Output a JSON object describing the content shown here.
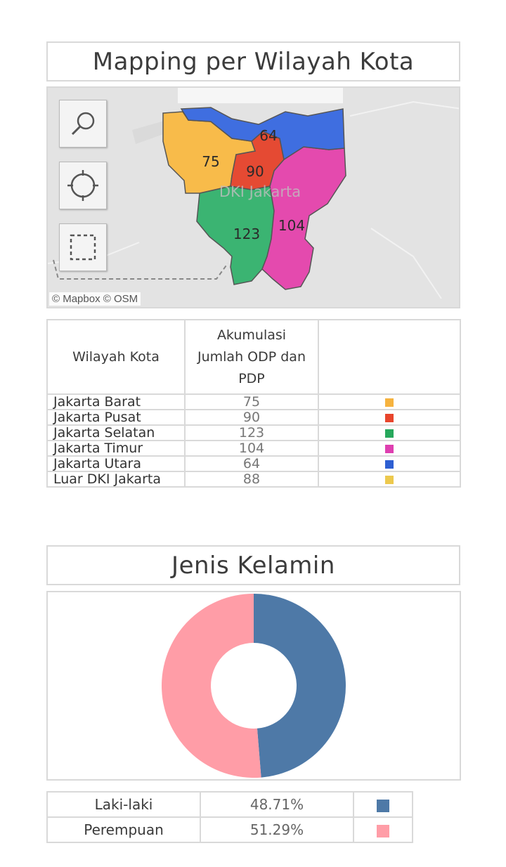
{
  "map_section": {
    "title": "Mapping per Wilayah Kota",
    "map_label": "DKI Jakarta",
    "attribution": "© Mapbox  © OSM",
    "tools": [
      {
        "name": "search-tool",
        "icon": "magnifier-icon"
      },
      {
        "name": "locate-tool",
        "icon": "crosshair-icon"
      },
      {
        "name": "select-tool",
        "icon": "dashed-rectangle-icon"
      }
    ],
    "region_labels": {
      "utara": "64",
      "barat": "75",
      "pusat": "90",
      "selatan": "123",
      "timur": "104"
    }
  },
  "region_table": {
    "headers": {
      "region": "Wilayah Kota",
      "value_line1": "Akumulasi",
      "value_line2": "Jumlah ODP dan",
      "value_line3": "PDP",
      "color": ""
    },
    "rows": [
      {
        "name": "Jakarta Barat",
        "value": "75",
        "color": "#f6b33f"
      },
      {
        "name": "Jakarta Pusat",
        "value": "90",
        "color": "#e8452c"
      },
      {
        "name": "Jakarta Selatan",
        "value": "123",
        "color": "#27a85c"
      },
      {
        "name": "Jakarta Timur",
        "value": "104",
        "color": "#de3fb0"
      },
      {
        "name": "Jakarta Utara",
        "value": "64",
        "color": "#2e5fd2"
      },
      {
        "name": "Luar DKI Jakarta",
        "value": "88",
        "color": "#edc94d"
      }
    ]
  },
  "gender_section": {
    "title": "Jenis Kelamin",
    "rows": [
      {
        "label": "Laki-laki",
        "value": "48.71%",
        "color": "#4e79a7"
      },
      {
        "label": "Perempuan",
        "value": "51.29%",
        "color": "#ff9da7"
      }
    ]
  },
  "chart_data": {
    "type": "pie",
    "categories": [
      "Laki-laki",
      "Perempuan"
    ],
    "values": [
      48.71,
      51.29
    ],
    "colors": [
      "#4e79a7",
      "#ff9da7"
    ],
    "donut": true,
    "title": "Jenis Kelamin"
  }
}
